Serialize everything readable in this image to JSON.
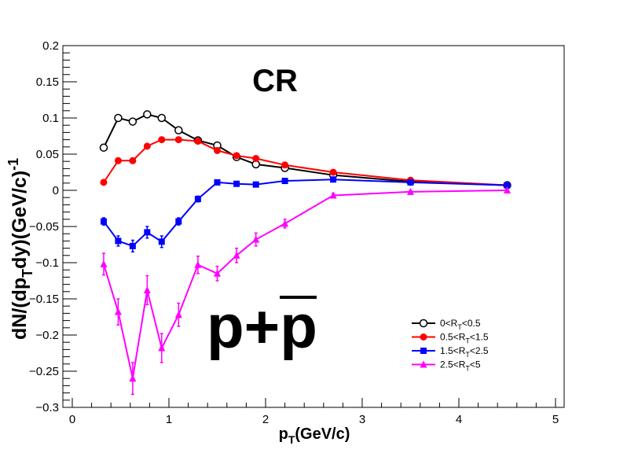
{
  "chart_data": {
    "type": "scatter",
    "title": "",
    "annotation": "CR",
    "particle_label": {
      "main": "p+",
      "bar": "p"
    },
    "xlabel": {
      "main": "p",
      "sub": "T",
      "rest": "(GeV/c)"
    },
    "ylabel": {
      "a": "dN/(dp",
      "a_sub": "T",
      "b": "dy)(GeV/c)",
      "b_sup": "-1"
    },
    "xlim": [
      0,
      5
    ],
    "ylim": [
      -0.3,
      0.2
    ],
    "x_ticks": [
      0,
      1,
      2,
      3,
      4,
      5
    ],
    "x_tick_labels": [
      "0",
      "1",
      "2",
      "3",
      "4",
      "5"
    ],
    "y_ticks": [
      -0.3,
      -0.25,
      -0.2,
      -0.15,
      -0.1,
      -0.05,
      0,
      0.05,
      0.1,
      0.15,
      0.2
    ],
    "y_tick_labels": [
      "−0.3",
      "−0.25",
      "−0.2",
      "−0.15",
      "−0.1",
      "−0.05",
      "0",
      "0.05",
      "0.1",
      "0.15",
      "0.2"
    ],
    "grid": false,
    "legend_position": "bottom-right",
    "series": [
      {
        "legend": {
          "a": "0<R",
          "sub": "T",
          "b": "<0.5"
        },
        "color": "#000000",
        "marker": "open-circle",
        "x": [
          0.325,
          0.475,
          0.625,
          0.775,
          0.925,
          1.1,
          1.3,
          1.5,
          1.7,
          1.9,
          2.2,
          2.7,
          3.5,
          4.5
        ],
        "y": [
          0.059,
          0.1,
          0.095,
          0.105,
          0.1,
          0.083,
          0.069,
          0.062,
          0.046,
          0.036,
          0.031,
          0.021,
          0.012,
          0.007
        ],
        "err": [
          0.003,
          0.004,
          0.004,
          0.004,
          0.004,
          0.003,
          0.002,
          0.002,
          0.002,
          0.002,
          0.001,
          0.001,
          0.001,
          0.001
        ]
      },
      {
        "legend": {
          "a": "0.5<R",
          "sub": "T",
          "b": "<1.5"
        },
        "color": "#ff0000",
        "marker": "filled-circle",
        "x": [
          0.325,
          0.475,
          0.625,
          0.775,
          0.925,
          1.1,
          1.3,
          1.5,
          1.7,
          1.9,
          2.2,
          2.7,
          3.5,
          4.5
        ],
        "y": [
          0.011,
          0.041,
          0.041,
          0.061,
          0.07,
          0.07,
          0.068,
          0.055,
          0.048,
          0.044,
          0.035,
          0.025,
          0.014,
          0.007
        ],
        "err": [
          0.002,
          0.002,
          0.002,
          0.002,
          0.002,
          0.002,
          0.002,
          0.002,
          0.001,
          0.001,
          0.001,
          0.001,
          0.001,
          0.001
        ]
      },
      {
        "legend": {
          "a": "1.5<R",
          "sub": "T",
          "b": "<2.5"
        },
        "color": "#0000ff",
        "marker": "filled-square",
        "x": [
          0.325,
          0.475,
          0.625,
          0.775,
          0.925,
          1.1,
          1.3,
          1.5,
          1.7,
          1.9,
          2.2,
          2.7,
          3.5,
          4.5
        ],
        "y": [
          -0.043,
          -0.07,
          -0.077,
          -0.058,
          -0.071,
          -0.043,
          -0.012,
          0.011,
          0.009,
          0.008,
          0.013,
          0.015,
          0.011,
          0.007
        ],
        "err": [
          0.005,
          0.007,
          0.008,
          0.008,
          0.008,
          0.005,
          0.004,
          0.003,
          0.002,
          0.002,
          0.002,
          0.001,
          0.001,
          0.001
        ]
      },
      {
        "legend": {
          "a": "2.5<R",
          "sub": "T",
          "b": "<5"
        },
        "color": "#ff00ff",
        "marker": "filled-triangle",
        "x": [
          0.325,
          0.475,
          0.625,
          0.775,
          0.925,
          1.1,
          1.3,
          1.5,
          1.7,
          1.9,
          2.2,
          2.7,
          3.5,
          4.5
        ],
        "y": [
          -0.102,
          -0.168,
          -0.26,
          -0.138,
          -0.218,
          -0.172,
          -0.103,
          -0.115,
          -0.09,
          -0.068,
          -0.046,
          -0.007,
          -0.002,
          0.0
        ],
        "err": [
          0.015,
          0.018,
          0.022,
          0.02,
          0.02,
          0.016,
          0.012,
          0.01,
          0.01,
          0.009,
          0.006,
          0.003,
          0.002,
          0.002
        ]
      }
    ]
  }
}
